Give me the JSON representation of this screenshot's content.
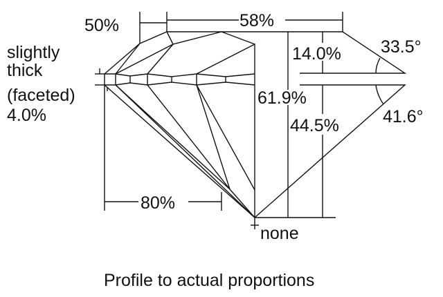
{
  "labels": {
    "table_crown_half": "50%",
    "table": "58%",
    "girdle_line1": "slightly",
    "girdle_line2": "thick",
    "girdle_line3": "(faceted)",
    "girdle_pct": "4.0%",
    "crown_height": "14.0%",
    "crown_angle": "33.5°",
    "total_depth": "61.9%",
    "pavilion_depth": "44.5%",
    "pavilion_angle": "41.6°",
    "lower_half": "80%",
    "culet": "none"
  },
  "caption": "Profile to actual proportions"
}
